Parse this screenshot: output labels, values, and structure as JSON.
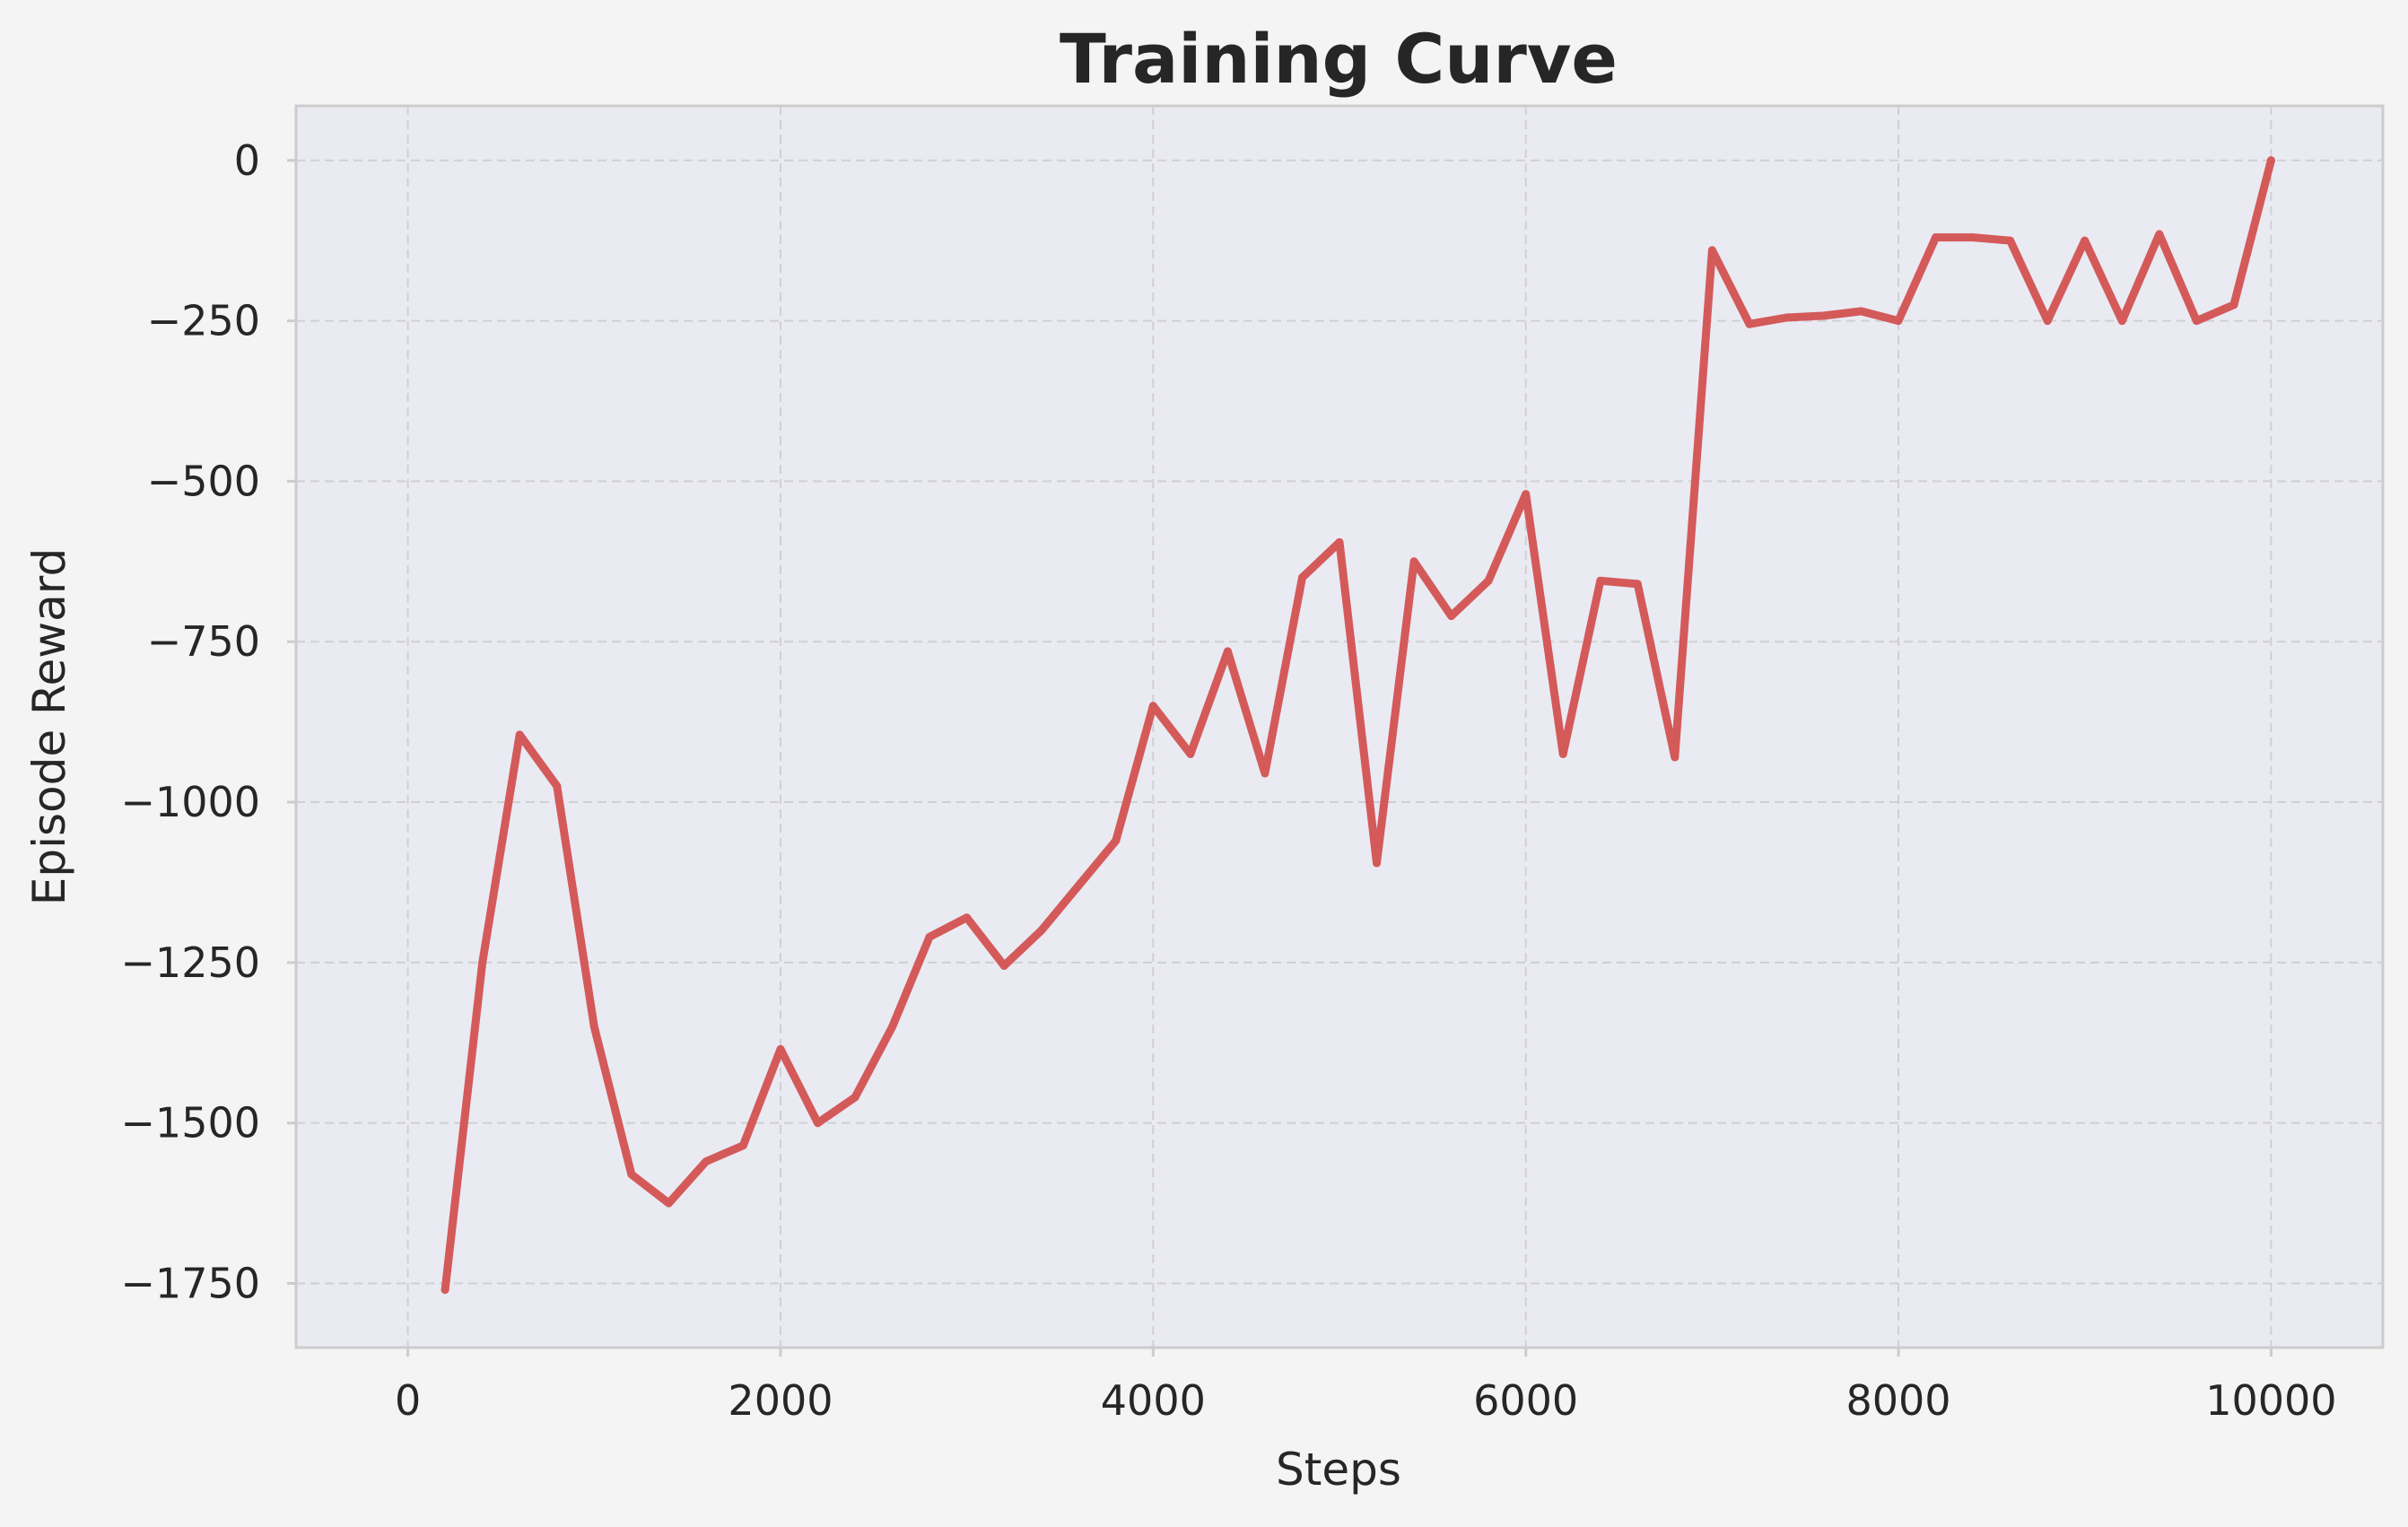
{
  "chart_data": {
    "type": "line",
    "title": "Training Curve",
    "xlabel": "Steps",
    "ylabel": "Episode Reward",
    "xlim": [
      -600,
      10600
    ],
    "ylim": [
      -1850,
      85
    ],
    "xticks": [
      0,
      2000,
      4000,
      6000,
      8000,
      10000
    ],
    "yticks": [
      0,
      -250,
      -500,
      -750,
      -1000,
      -1250,
      -1500,
      -1750
    ],
    "ytick_labels": [
      "0",
      "−250",
      "−500",
      "−750",
      "−1000",
      "−1250",
      "−1500",
      "−1750"
    ],
    "grid": true,
    "line_color": "#d45a5a",
    "background_color": "#eaeaf2",
    "series": [
      {
        "x": [
          200,
          400,
          600,
          800,
          1000,
          1200,
          1400,
          1600,
          1800,
          2000,
          2200,
          2400,
          2600,
          2800,
          3000,
          3200,
          3400,
          3600,
          3800,
          4000,
          4200,
          4400,
          4600,
          4800,
          5000,
          5200,
          5400,
          5600,
          5800,
          6000,
          6200,
          6400,
          6600,
          6800,
          7000,
          7200,
          7400,
          7600,
          7800,
          8000,
          8200,
          8400,
          8600,
          8800,
          9000,
          9200,
          9400,
          9600,
          9800,
          10000
        ],
        "values": [
          -1760,
          -1250,
          -895,
          -975,
          -1350,
          -1580,
          -1625,
          -1560,
          -1535,
          -1385,
          -1500,
          -1460,
          -1350,
          -1210,
          -1180,
          -1255,
          -1200,
          -1130,
          -1060,
          -850,
          -925,
          -765,
          -955,
          -650,
          -595,
          -1095,
          -625,
          -710,
          -655,
          -520,
          -925,
          -655,
          -660,
          -930,
          -140,
          -255,
          -245,
          -242,
          -235,
          -250,
          -120,
          -120,
          -125,
          -250,
          -125,
          -250,
          -115,
          -250,
          -225,
          0
        ]
      }
    ]
  }
}
